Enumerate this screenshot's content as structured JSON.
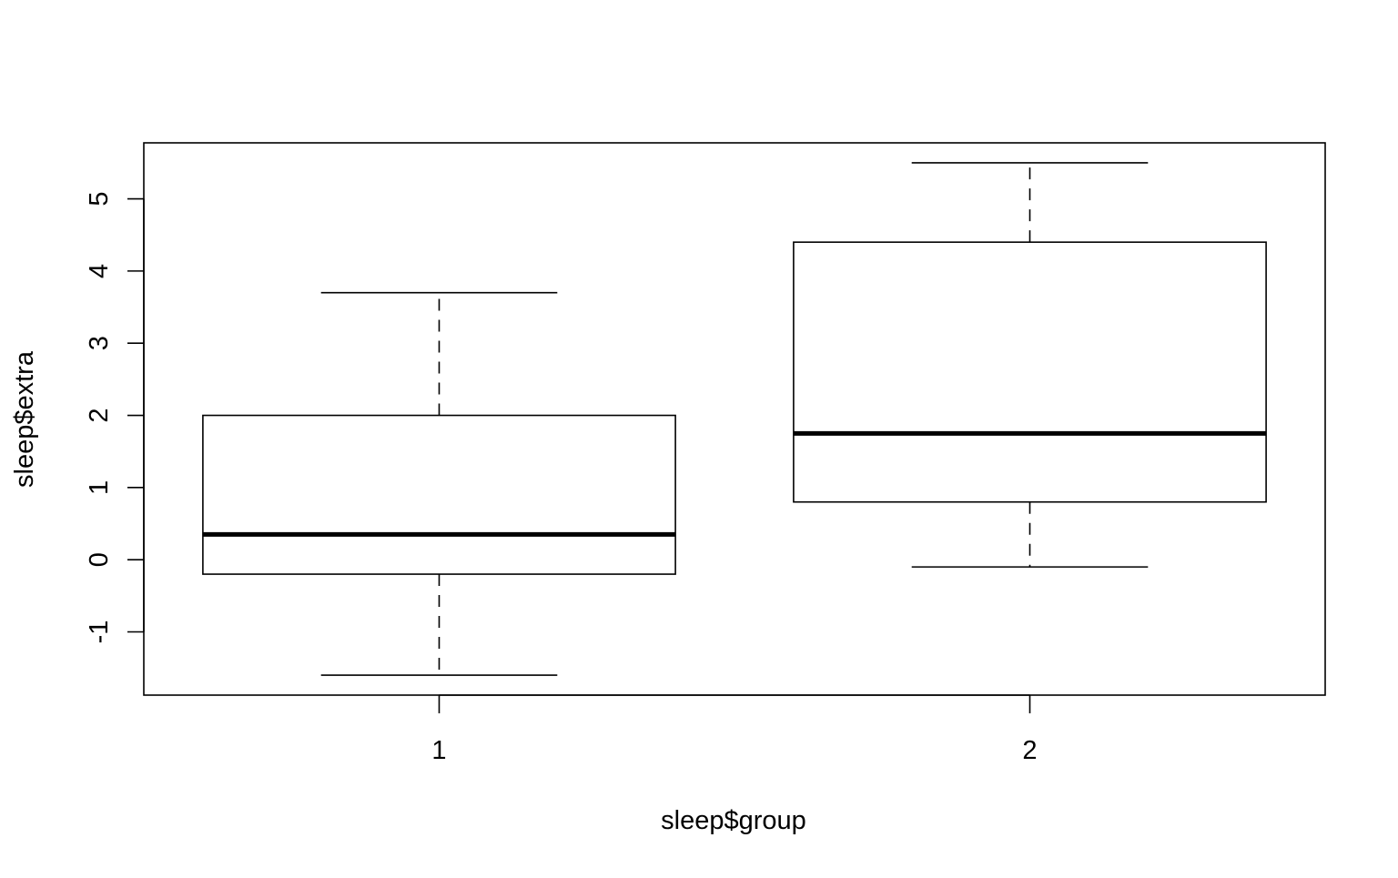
{
  "chart_data": {
    "type": "boxplot",
    "xlabel": "sleep$group",
    "ylabel": "sleep$extra",
    "categories": [
      "1",
      "2"
    ],
    "boxes": [
      {
        "category": "1",
        "min": -1.6,
        "q1": -0.2,
        "median": 0.35,
        "q3": 2.0,
        "max": 3.7
      },
      {
        "category": "2",
        "min": -0.1,
        "q1": 0.8,
        "median": 1.75,
        "q3": 4.4,
        "max": 5.5
      }
    ],
    "y_ticks": [
      -1,
      0,
      1,
      2,
      3,
      4,
      5
    ],
    "y_tick_labels": [
      "-1",
      "0",
      "1",
      "2",
      "3",
      "4",
      "5"
    ],
    "ylim": [
      -1.876,
      5.776
    ],
    "grid": false,
    "colors": {
      "box_fill": "#ffffff",
      "stroke": "#000000"
    }
  }
}
